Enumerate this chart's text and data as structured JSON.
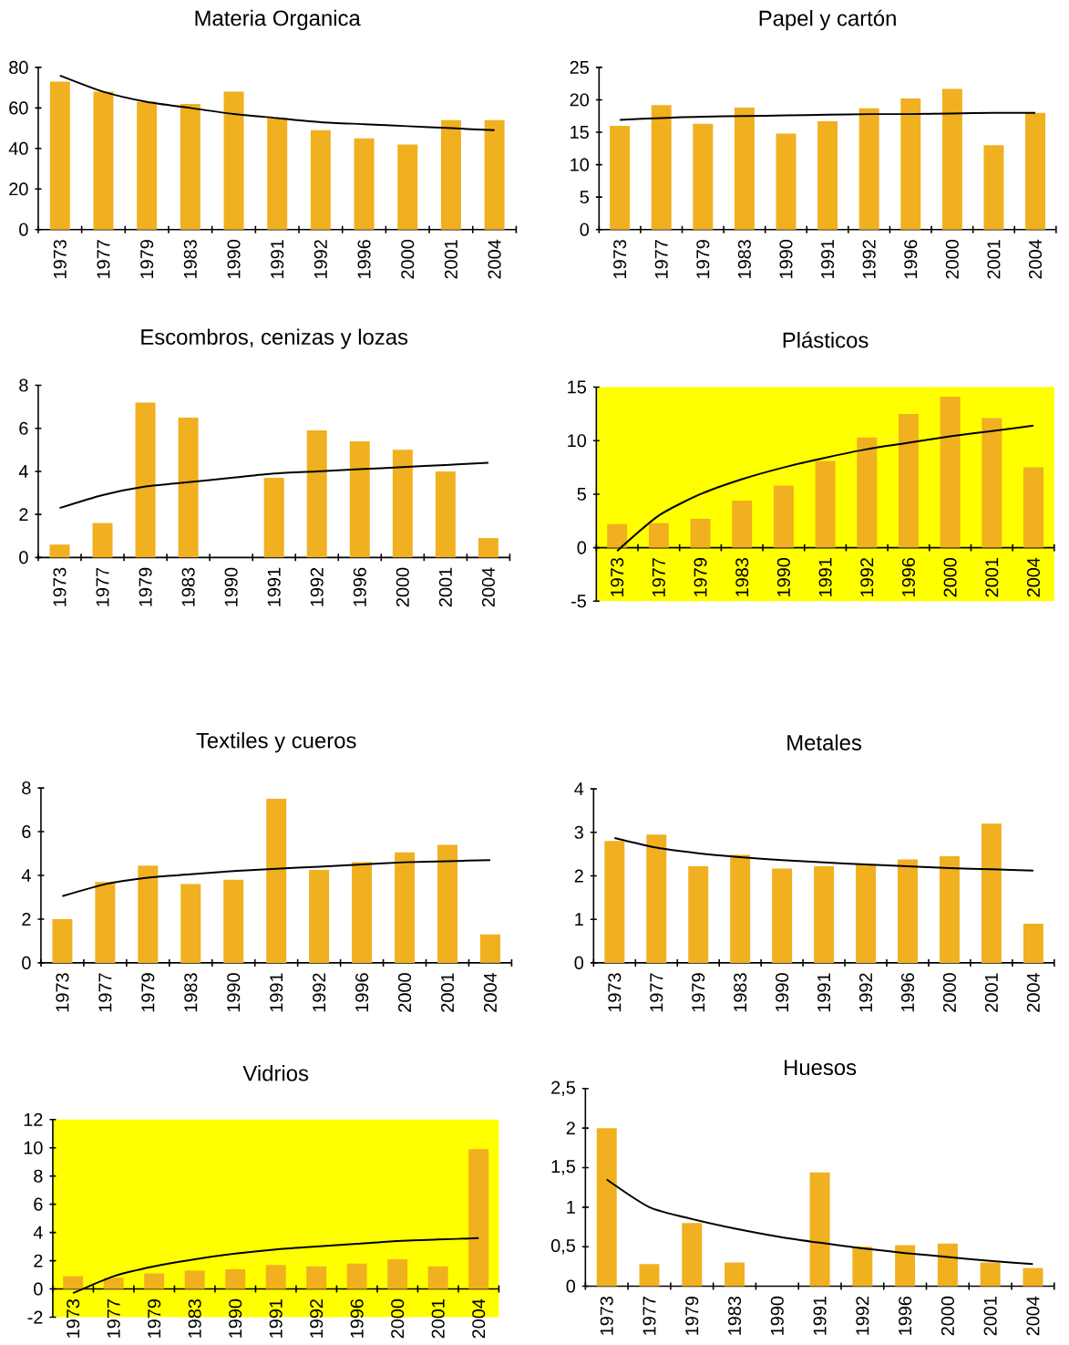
{
  "chart_data": [
    {
      "type": "bar",
      "title": "Materia Organica",
      "categories": [
        "1973",
        "1977",
        "1979",
        "1983",
        "1990",
        "1991",
        "1992",
        "1996",
        "2000",
        "2001",
        "2004"
      ],
      "ylim": [
        0,
        80
      ],
      "yticks": [
        0,
        20,
        40,
        60,
        80
      ],
      "series": [
        {
          "color": "#f0b020",
          "values": [
            73,
            68,
            63,
            62,
            68,
            55,
            49,
            45,
            42,
            54,
            54
          ]
        },
        {
          "type": "line",
          "color": "#000000",
          "values": [
            76,
            68,
            63,
            60,
            57,
            55,
            53,
            52,
            51,
            50,
            49
          ]
        }
      ]
    },
    {
      "type": "bar",
      "title": "Papel y cartón",
      "categories": [
        "1973",
        "1977",
        "1979",
        "1983",
        "1990",
        "1991",
        "1992",
        "1996",
        "2000",
        "2001",
        "2004"
      ],
      "ylim": [
        0,
        25
      ],
      "yticks": [
        0,
        5,
        10,
        15,
        20,
        25
      ],
      "series": [
        {
          "color": "#f0b020",
          "values": [
            16,
            19.2,
            16.3,
            18.8,
            14.8,
            16.7,
            18.7,
            20.2,
            21.7,
            13,
            18
          ]
        },
        {
          "type": "line",
          "color": "#000000",
          "values": [
            16.9,
            17.2,
            17.4,
            17.5,
            17.6,
            17.7,
            17.8,
            17.8,
            17.9,
            18,
            18
          ]
        }
      ]
    },
    {
      "type": "bar",
      "title": "Escombros, cenizas y lozas",
      "categories": [
        "1973",
        "1977",
        "1979",
        "1983",
        "1990",
        "1991",
        "1992",
        "1996",
        "2000",
        "2001",
        "2004"
      ],
      "ylim": [
        0,
        8
      ],
      "yticks": [
        0,
        2,
        4,
        6,
        8
      ],
      "series": [
        {
          "color": "#f0b020",
          "values": [
            0.6,
            1.6,
            7.2,
            6.5,
            null,
            3.7,
            5.9,
            5.4,
            5.0,
            4.0,
            0.9
          ]
        },
        {
          "type": "line",
          "color": "#000000",
          "values": [
            2.3,
            2.9,
            3.3,
            3.5,
            3.7,
            3.9,
            4.0,
            4.1,
            4.2,
            4.3,
            4.4
          ]
        }
      ]
    },
    {
      "type": "bar",
      "title": "Plásticos",
      "categories": [
        "1973",
        "1977",
        "1979",
        "1983",
        "1990",
        "1991",
        "1992",
        "1996",
        "2000",
        "2001",
        "2004"
      ],
      "ylim": [
        -5,
        15
      ],
      "yticks": [
        -5,
        0,
        5,
        10,
        15
      ],
      "bands": [
        {
          "axis": "y",
          "from": -5,
          "to": 15,
          "color": "#ffff00"
        }
      ],
      "series": [
        {
          "color": "#f0b020",
          "values": [
            2.2,
            2.3,
            2.7,
            4.4,
            5.8,
            8.1,
            10.3,
            12.5,
            14.1,
            12.1,
            7.5
          ]
        },
        {
          "type": "line",
          "color": "#000000",
          "values": [
            -0.3,
            3.0,
            5.0,
            6.4,
            7.5,
            8.4,
            9.2,
            9.8,
            10.4,
            10.9,
            11.4
          ]
        }
      ]
    },
    {
      "type": "bar",
      "title": "Textiles y cueros",
      "categories": [
        "1973",
        "1977",
        "1979",
        "1983",
        "1990",
        "1991",
        "1992",
        "1996",
        "2000",
        "2001",
        "2004"
      ],
      "ylim": [
        0,
        8
      ],
      "yticks": [
        0,
        2,
        4,
        6,
        8
      ],
      "series": [
        {
          "color": "#f0b020",
          "values": [
            2.0,
            3.7,
            4.45,
            3.6,
            3.8,
            7.5,
            4.25,
            4.6,
            5.05,
            5.4,
            1.3
          ]
        },
        {
          "type": "line",
          "color": "#000000",
          "values": [
            3.05,
            3.6,
            3.9,
            4.05,
            4.2,
            4.3,
            4.4,
            4.5,
            4.6,
            4.65,
            4.7
          ]
        }
      ]
    },
    {
      "type": "bar",
      "title": "Metales",
      "categories": [
        "1973",
        "1977",
        "1979",
        "1983",
        "1990",
        "1991",
        "1992",
        "1996",
        "2000",
        "2001",
        "2004"
      ],
      "ylim": [
        0,
        4
      ],
      "yticks": [
        0,
        1,
        2,
        3,
        4
      ],
      "series": [
        {
          "color": "#f0b020",
          "values": [
            2.8,
            2.95,
            2.22,
            2.48,
            2.17,
            2.22,
            2.27,
            2.38,
            2.45,
            3.2,
            0.9
          ]
        },
        {
          "type": "line",
          "color": "#000000",
          "values": [
            2.87,
            2.65,
            2.52,
            2.43,
            2.36,
            2.31,
            2.26,
            2.22,
            2.18,
            2.15,
            2.12
          ]
        }
      ]
    },
    {
      "type": "bar",
      "title": "Vidrios",
      "categories": [
        "1973",
        "1977",
        "1979",
        "1983",
        "1990",
        "1991",
        "1992",
        "1996",
        "2000",
        "2001",
        "2004"
      ],
      "ylim": [
        -2,
        12
      ],
      "yticks": [
        -2,
        0,
        2,
        4,
        6,
        8,
        10,
        12
      ],
      "bands": [
        {
          "axis": "y",
          "from": -2,
          "to": 12,
          "color": "#ffff00"
        }
      ],
      "series": [
        {
          "color": "#f0b020",
          "values": [
            0.9,
            0.8,
            1.1,
            1.3,
            1.4,
            1.7,
            1.6,
            1.8,
            2.1,
            1.6,
            9.9
          ]
        },
        {
          "type": "line",
          "color": "#000000",
          "values": [
            -0.3,
            0.9,
            1.6,
            2.1,
            2.5,
            2.8,
            3.0,
            3.2,
            3.4,
            3.5,
            3.6
          ]
        }
      ]
    },
    {
      "type": "bar",
      "title": "Huesos",
      "categories": [
        "1973",
        "1977",
        "1979",
        "1983",
        "1990",
        "1991",
        "1992",
        "1996",
        "2000",
        "2001",
        "2004"
      ],
      "ylim": [
        0,
        2.5
      ],
      "yticks": [
        0,
        {
          "value": 0.5,
          "label": "0,5"
        },
        1,
        {
          "value": 1.5,
          "label": "1,5"
        },
        2,
        {
          "value": 2.5,
          "label": "2,5"
        }
      ],
      "series": [
        {
          "color": "#f0b020",
          "values": [
            2.0,
            0.28,
            0.8,
            0.3,
            null,
            1.44,
            0.5,
            0.52,
            0.54,
            0.3,
            0.23
          ]
        },
        {
          "type": "line",
          "color": "#000000",
          "values": [
            1.35,
            1.0,
            0.85,
            0.73,
            0.63,
            0.55,
            0.48,
            0.42,
            0.37,
            0.32,
            0.28
          ]
        }
      ]
    }
  ]
}
